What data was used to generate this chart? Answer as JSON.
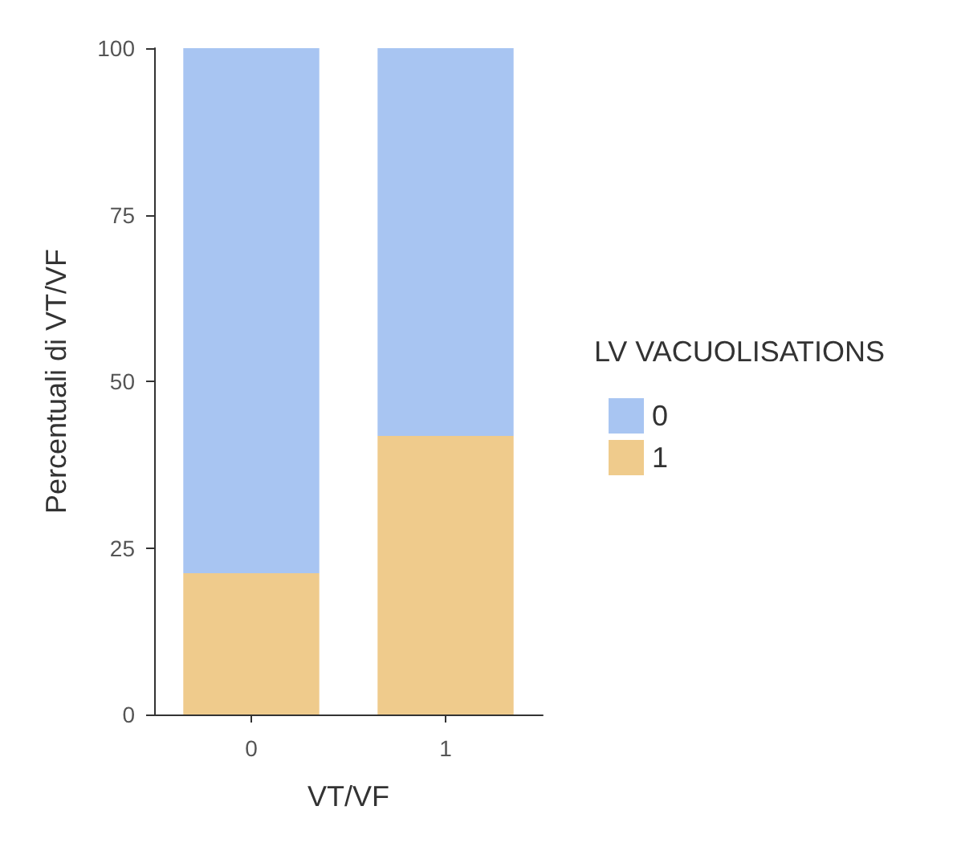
{
  "chart_data": {
    "type": "bar",
    "stacked": true,
    "xlabel": "VT/VF",
    "ylabel": "Percentuali di VT/VF",
    "legend_title": "LV VACUOLISATIONS",
    "legend": "right",
    "categories": [
      "0",
      "1"
    ],
    "series": [
      {
        "name": "1",
        "color": "#efcb8c",
        "values": [
          21.2,
          41.8
        ]
      },
      {
        "name": "0",
        "color": "#a8c5f2",
        "values": [
          78.8,
          58.2
        ]
      }
    ],
    "ylim": [
      0,
      100
    ],
    "yticks": [
      0,
      25,
      50,
      75,
      100
    ],
    "grid": false
  }
}
